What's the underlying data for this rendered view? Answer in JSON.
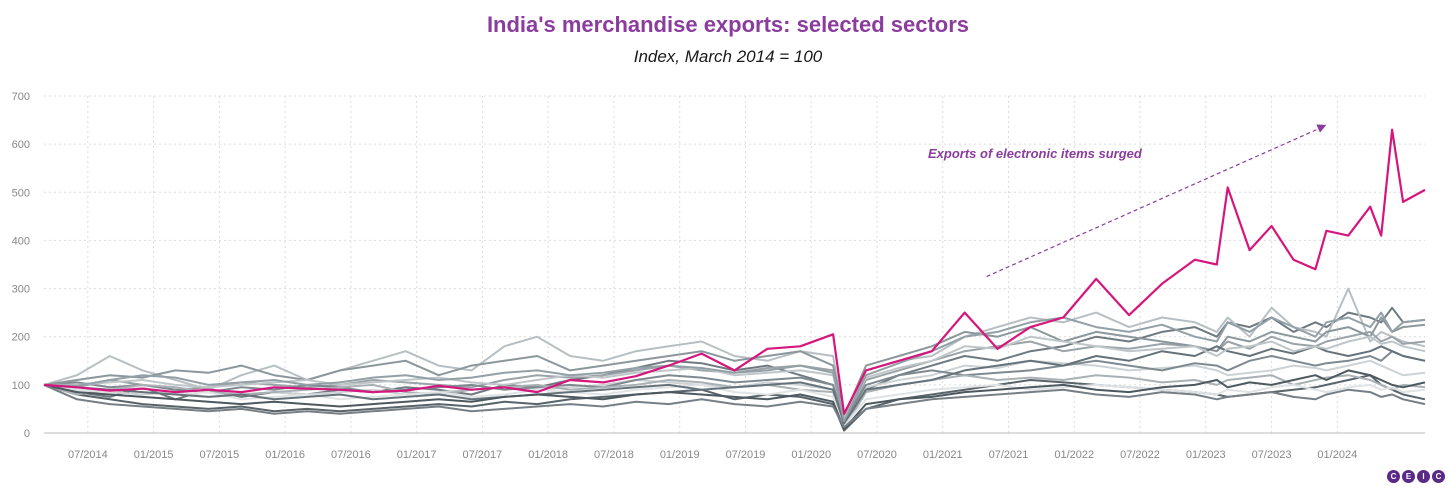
{
  "colors": {
    "accent": "#8b3d9e",
    "electronics": "#d5177d",
    "grid": "#dcdcdc",
    "axis_text": "#888888"
  },
  "logo": {
    "letters": [
      "C",
      "E",
      "I",
      "C"
    ]
  },
  "chart_data": {
    "type": "line",
    "title": "India's merchandise exports: selected sectors",
    "subtitle": "Index, March 2014 = 100",
    "xlabel": "",
    "ylabel": "",
    "ylim": [
      0,
      700
    ],
    "yticks": [
      0,
      100,
      200,
      300,
      400,
      500,
      600,
      700
    ],
    "x_start": "2014-03",
    "x_end": "2024-09",
    "xtick_labels": [
      "07/2014",
      "01/2015",
      "07/2015",
      "01/2016",
      "07/2016",
      "01/2017",
      "07/2017",
      "01/2018",
      "07/2018",
      "01/2019",
      "07/2019",
      "01/2020",
      "07/2020",
      "01/2021",
      "07/2021",
      "01/2022",
      "07/2022",
      "01/2023",
      "07/2023",
      "01/2024"
    ],
    "grid": true,
    "annotation": {
      "text": "Exports of electronic items surged",
      "arrow_from": [
        "2021-05",
        325
      ],
      "arrow_to": [
        "2023-12",
        640
      ]
    },
    "highlight_series": {
      "name": "",
      "color": "#d5177d",
      "x": [
        "2014-03",
        "2014-06",
        "2014-09",
        "2014-12",
        "2015-03",
        "2015-06",
        "2015-09",
        "2015-12",
        "2016-03",
        "2016-06",
        "2016-09",
        "2016-12",
        "2017-03",
        "2017-06",
        "2017-09",
        "2017-12",
        "2018-03",
        "2018-06",
        "2018-09",
        "2018-12",
        "2019-03",
        "2019-06",
        "2019-09",
        "2019-12",
        "2020-03",
        "2020-04",
        "2020-06",
        "2020-09",
        "2020-12",
        "2021-03",
        "2021-06",
        "2021-09",
        "2021-12",
        "2022-03",
        "2022-06",
        "2022-09",
        "2022-12",
        "2023-02",
        "2023-03",
        "2023-05",
        "2023-07",
        "2023-09",
        "2023-11",
        "2023-12",
        "2024-02",
        "2024-04",
        "2024-05",
        "2024-06",
        "2024-07",
        "2024-09"
      ],
      "values": [
        100,
        95,
        88,
        92,
        85,
        90,
        85,
        95,
        92,
        90,
        85,
        88,
        98,
        90,
        95,
        85,
        110,
        105,
        118,
        140,
        165,
        130,
        175,
        180,
        205,
        40,
        130,
        150,
        170,
        250,
        175,
        220,
        240,
        320,
        245,
        310,
        360,
        350,
        510,
        380,
        430,
        360,
        340,
        420,
        410,
        470,
        410,
        630,
        480,
        505
      ]
    },
    "background_series": [
      {
        "values": [
          100,
          85,
          75,
          95,
          70,
          90,
          75,
          85,
          80,
          90,
          85,
          95,
          90,
          80,
          100,
          95,
          110,
          120,
          135,
          150,
          145,
          130,
          140,
          120,
          100,
          10,
          90,
          120,
          140,
          160,
          150,
          170,
          180,
          200,
          190,
          210,
          220,
          200,
          230,
          220,
          240,
          210,
          230,
          220,
          250,
          240,
          230,
          260,
          230,
          235
        ]
      },
      {
        "values": [
          100,
          120,
          160,
          130,
          110,
          90,
          120,
          140,
          110,
          130,
          150,
          170,
          140,
          130,
          180,
          200,
          160,
          150,
          170,
          180,
          190,
          160,
          150,
          170,
          160,
          30,
          130,
          150,
          160,
          200,
          220,
          240,
          230,
          250,
          220,
          240,
          230,
          210,
          240,
          200,
          260,
          220,
          210,
          200,
          300,
          190,
          210,
          200,
          190,
          180
        ]
      },
      {
        "values": [
          100,
          80,
          70,
          60,
          55,
          50,
          55,
          45,
          50,
          45,
          50,
          55,
          60,
          55,
          65,
          60,
          70,
          75,
          80,
          85,
          90,
          70,
          80,
          75,
          60,
          5,
          50,
          70,
          80,
          90,
          100,
          110,
          105,
          100,
          95,
          90,
          85,
          80,
          75,
          80,
          85,
          90,
          95,
          100,
          110,
          120,
          100,
          90,
          80,
          70
        ]
      },
      {
        "values": [
          100,
          95,
          110,
          100,
          90,
          95,
          105,
          100,
          95,
          100,
          110,
          105,
          100,
          95,
          110,
          120,
          115,
          120,
          130,
          140,
          130,
          125,
          135,
          140,
          130,
          20,
          110,
          130,
          150,
          170,
          180,
          190,
          170,
          180,
          175,
          185,
          180,
          170,
          190,
          175,
          200,
          185,
          180,
          190,
          200,
          210,
          190,
          200,
          185,
          190
        ]
      },
      {
        "values": [
          100,
          90,
          85,
          80,
          85,
          75,
          80,
          85,
          80,
          85,
          90,
          80,
          85,
          90,
          95,
          90,
          95,
          100,
          110,
          105,
          100,
          95,
          105,
          100,
          90,
          15,
          95,
          110,
          120,
          140,
          135,
          150,
          145,
          140,
          130,
          135,
          140,
          130,
          120,
          125,
          130,
          140,
          135,
          130,
          140,
          150,
          140,
          130,
          120,
          125
        ]
      },
      {
        "values": [
          100,
          105,
          95,
          100,
          90,
          85,
          95,
          90,
          100,
          95,
          85,
          90,
          95,
          100,
          90,
          95,
          100,
          95,
          110,
          120,
          115,
          105,
          110,
          115,
          100,
          25,
          100,
          120,
          130,
          120,
          125,
          130,
          140,
          150,
          140,
          130,
          145,
          140,
          130,
          150,
          160,
          150,
          140,
          145,
          150,
          160,
          150,
          170,
          160,
          150
        ]
      },
      {
        "values": [
          100,
          80,
          90,
          100,
          95,
          85,
          80,
          85,
          90,
          95,
          100,
          85,
          80,
          90,
          95,
          100,
          90,
          95,
          100,
          110,
          105,
          95,
          100,
          90,
          85,
          10,
          85,
          100,
          110,
          120,
          110,
          115,
          110,
          120,
          115,
          105,
          110,
          100,
          110,
          115,
          120,
          100,
          110,
          115,
          120,
          110,
          100,
          90,
          100,
          95
        ]
      },
      {
        "values": [
          100,
          110,
          120,
          115,
          130,
          125,
          140,
          120,
          110,
          130,
          140,
          150,
          120,
          140,
          150,
          160,
          130,
          140,
          150,
          160,
          170,
          150,
          160,
          170,
          140,
          35,
          140,
          160,
          180,
          210,
          200,
          220,
          190,
          210,
          200,
          190,
          180,
          170,
          200,
          190,
          210,
          200,
          190,
          210,
          220,
          200,
          240,
          210,
          220,
          225
        ]
      },
      {
        "values": [
          100,
          90,
          85,
          95,
          80,
          85,
          70,
          75,
          80,
          70,
          75,
          80,
          85,
          75,
          80,
          90,
          85,
          80,
          90,
          95,
          100,
          85,
          80,
          90,
          75,
          15,
          70,
          80,
          90,
          95,
          100,
          90,
          95,
          100,
          95,
          90,
          85,
          80,
          90,
          85,
          95,
          100,
          90,
          85,
          95,
          100,
          90,
          95,
          85,
          90
        ]
      },
      {
        "values": [
          100,
          95,
          90,
          85,
          80,
          75,
          80,
          70,
          75,
          80,
          70,
          75,
          80,
          70,
          75,
          80,
          85,
          90,
          95,
          100,
          90,
          95,
          100,
          105,
          90,
          20,
          90,
          100,
          110,
          130,
          140,
          150,
          140,
          160,
          150,
          170,
          160,
          180,
          170,
          160,
          175,
          165,
          180,
          170,
          160,
          170,
          180,
          170,
          160,
          150
        ]
      },
      {
        "values": [
          100,
          85,
          80,
          75,
          70,
          65,
          60,
          65,
          60,
          55,
          60,
          65,
          70,
          65,
          75,
          80,
          75,
          70,
          80,
          85,
          80,
          75,
          70,
          80,
          65,
          8,
          60,
          70,
          75,
          85,
          90,
          95,
          100,
          90,
          85,
          95,
          100,
          110,
          95,
          105,
          100,
          110,
          120,
          110,
          130,
          120,
          110,
          100,
          95,
          105
        ]
      },
      {
        "values": [
          100,
          100,
          105,
          110,
          100,
          95,
          100,
          105,
          110,
          100,
          105,
          110,
          115,
          105,
          100,
          110,
          120,
          115,
          125,
          130,
          135,
          120,
          125,
          130,
          120,
          30,
          115,
          135,
          150,
          180,
          175,
          200,
          190,
          180,
          170,
          175,
          180,
          160,
          175,
          180,
          190,
          170,
          180,
          175,
          190,
          200,
          185,
          190,
          180,
          170
        ]
      },
      {
        "values": [
          100,
          70,
          60,
          55,
          50,
          45,
          50,
          40,
          45,
          40,
          45,
          50,
          55,
          45,
          50,
          55,
          60,
          55,
          65,
          60,
          70,
          60,
          55,
          65,
          55,
          12,
          50,
          60,
          70,
          75,
          80,
          85,
          90,
          80,
          75,
          85,
          80,
          70,
          75,
          80,
          85,
          75,
          70,
          80,
          90,
          85,
          75,
          80,
          70,
          60
        ]
      },
      {
        "values": [
          100,
          98,
          110,
          120,
          115,
          100,
          105,
          110,
          100,
          105,
          115,
          120,
          110,
          115,
          125,
          130,
          120,
          125,
          135,
          140,
          135,
          125,
          130,
          140,
          125,
          25,
          120,
          145,
          170,
          200,
          210,
          230,
          240,
          220,
          210,
          225,
          200,
          190,
          230,
          210,
          240,
          220,
          200,
          230,
          240,
          220,
          250,
          210,
          230,
          235
        ]
      }
    ]
  }
}
